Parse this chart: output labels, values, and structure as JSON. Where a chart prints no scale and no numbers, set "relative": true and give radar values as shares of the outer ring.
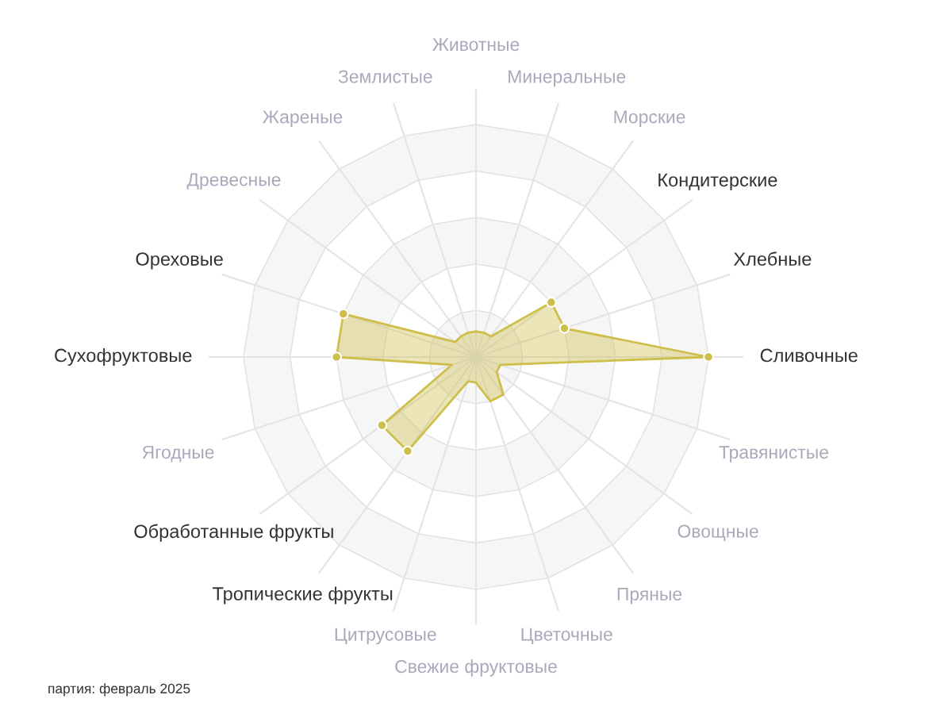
{
  "chart_data": {
    "type": "radar",
    "relative": true,
    "categories": [
      "Животные",
      "Минеральные",
      "Морские",
      "Кондитерские",
      "Хлебные",
      "Сливочные",
      "Травянистые",
      "Овощные",
      "Пряные",
      "Цветочные",
      "Свежие фруктовые",
      "Цитрусовые",
      "Тропические фрукты",
      "Обработанные фрукты",
      "Ягодные",
      "Сухофруктовые",
      "Ореховые",
      "Древесные",
      "Жареные",
      "Землистые"
    ],
    "series": [
      {
        "color": "#cdbf4a",
        "values": [
          0.11,
          0.11,
          0.11,
          0.4,
          0.4,
          1.0,
          0.11,
          0.11,
          0.2,
          0.2,
          0.11,
          0.11,
          0.5,
          0.5,
          0.11,
          0.6,
          0.6,
          0.11,
          0.11,
          0.11
        ]
      }
    ],
    "marker": "circle",
    "grid": true,
    "legend": false,
    "annotations": [
      "партия: февраль 2025"
    ]
  }
}
